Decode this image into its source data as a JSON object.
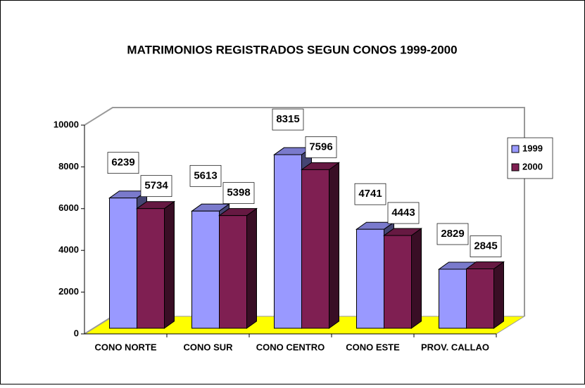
{
  "chart_data": {
    "type": "bar3d",
    "title": "MATRIMONIOS REGISTRADOS SEGUN CONOS 1999-2000",
    "categories": [
      "CONO NORTE",
      "CONO SUR",
      "CONO CENTRO",
      "CONO ESTE",
      "PROV. CALLAO"
    ],
    "series": [
      {
        "name": "1999",
        "color": "#9999ff",
        "values": [
          6239,
          5613,
          8315,
          4741,
          2829
        ]
      },
      {
        "name": "2000",
        "color": "#7f1f52",
        "values": [
          5734,
          5398,
          7596,
          4443,
          2845
        ]
      }
    ],
    "ylim": [
      0,
      10000
    ],
    "yticks": [
      0,
      2000,
      4000,
      6000,
      8000,
      10000
    ],
    "legend": "right",
    "floor_color": "#ffff00"
  }
}
